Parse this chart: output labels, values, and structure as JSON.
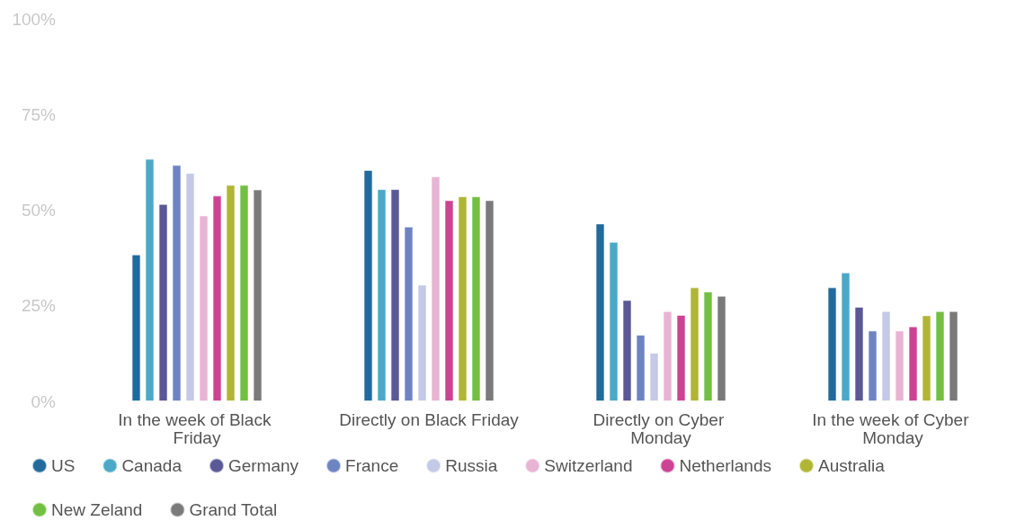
{
  "chart_data": {
    "type": "bar",
    "categories": [
      "In the week of Black Friday",
      "Directly on Black Friday",
      "Directly on Cyber Monday",
      "In the week of Cyber Monday"
    ],
    "series": [
      {
        "name": "US",
        "color": "#236a9c",
        "values": [
          38.4,
          60.5,
          46.5,
          29.8
        ]
      },
      {
        "name": "Canada",
        "color": "#4aa9c8",
        "values": [
          63.4,
          55.5,
          41.7,
          33.7
        ]
      },
      {
        "name": "Germany",
        "color": "#5a5896",
        "values": [
          51.6,
          55.5,
          26.5,
          24.7
        ]
      },
      {
        "name": "France",
        "color": "#6e84c2",
        "values": [
          61.8,
          45.7,
          17.4,
          18.5
        ]
      },
      {
        "name": "Russia",
        "color": "#c3c9e6",
        "values": [
          59.7,
          30.5,
          12.7,
          23.6
        ]
      },
      {
        "name": "Switzerland",
        "color": "#e8b4d3",
        "values": [
          48.6,
          58.8,
          23.6,
          18.5
        ]
      },
      {
        "name": "Netherlands",
        "color": "#cc4393",
        "values": [
          53.8,
          52.6,
          22.6,
          19.6
        ]
      },
      {
        "name": "Australia",
        "color": "#b1b536",
        "values": [
          56.6,
          53.6,
          29.8,
          22.5
        ]
      },
      {
        "name": "New Zeland",
        "color": "#73bf43",
        "values": [
          56.6,
          53.6,
          28.7,
          23.6
        ]
      },
      {
        "name": "Grand Total",
        "color": "#7a7a7a",
        "values": [
          55.4,
          52.6,
          27.6,
          23.6
        ]
      }
    ],
    "ylim": [
      0,
      100
    ],
    "yticks": [
      {
        "value": 0,
        "label": "0%"
      },
      {
        "value": 25,
        "label": "25%"
      },
      {
        "value": 50,
        "label": "50%"
      },
      {
        "value": 75,
        "label": "75%"
      },
      {
        "value": 100,
        "label": "100%"
      }
    ],
    "grid": false,
    "legend": "bottom"
  }
}
